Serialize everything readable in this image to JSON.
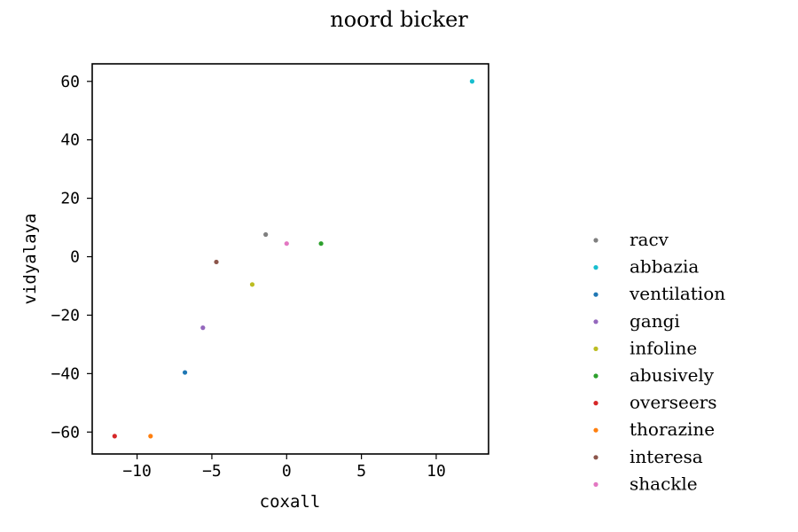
{
  "chart_data": {
    "type": "scatter",
    "title": "noord bicker",
    "xlabel": "coxall",
    "ylabel": "vidyalaya",
    "xlim": [
      -13.0,
      13.5
    ],
    "ylim": [
      -67.5,
      66.0
    ],
    "xticks": [
      -10,
      -5,
      0,
      5,
      10
    ],
    "yticks": [
      -60,
      -40,
      -20,
      0,
      20,
      40,
      60
    ],
    "xtick_labels": [
      "−10",
      "−5",
      "0",
      "5",
      "10"
    ],
    "ytick_labels": [
      "−60",
      "−40",
      "−20",
      "0",
      "20",
      "40",
      "60"
    ],
    "grid": false,
    "legend_position": "right",
    "series": [
      {
        "name": "racv",
        "color": "#7f7f7f",
        "x": -1.4,
        "y": 7.6
      },
      {
        "name": "abbazia",
        "color": "#17becf",
        "x": 12.4,
        "y": 60.0
      },
      {
        "name": "ventilation",
        "color": "#1f77b4",
        "x": -6.8,
        "y": -39.6
      },
      {
        "name": "gangi",
        "color": "#9467bd",
        "x": -5.6,
        "y": -24.3
      },
      {
        "name": "infoline",
        "color": "#bcbd22",
        "x": -2.3,
        "y": -9.5
      },
      {
        "name": "abusively",
        "color": "#2ca02c",
        "x": 2.3,
        "y": 4.5
      },
      {
        "name": "overseers",
        "color": "#d62728",
        "x": -11.5,
        "y": -61.4
      },
      {
        "name": "thorazine",
        "color": "#ff7f0e",
        "x": -9.1,
        "y": -61.4
      },
      {
        "name": "interesa",
        "color": "#8c564b",
        "x": -4.7,
        "y": -1.8
      },
      {
        "name": "shackle",
        "color": "#e377c2",
        "x": 0.0,
        "y": 4.5
      }
    ]
  }
}
